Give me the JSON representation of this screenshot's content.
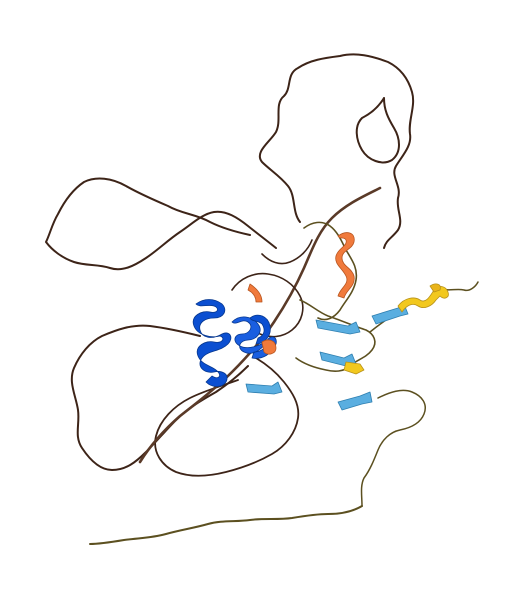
{
  "image": {
    "kind": "protein-structure-rendering",
    "background": "#ffffff",
    "representation": "cartoon",
    "color_scheme": {
      "very_high": "#0b4fd1",
      "high": "#5aaee0",
      "low": "#f2c81e",
      "very_low": "#f07a3c",
      "coil_dark": "#3d2418",
      "coil_olive": "#5c5020"
    }
  }
}
